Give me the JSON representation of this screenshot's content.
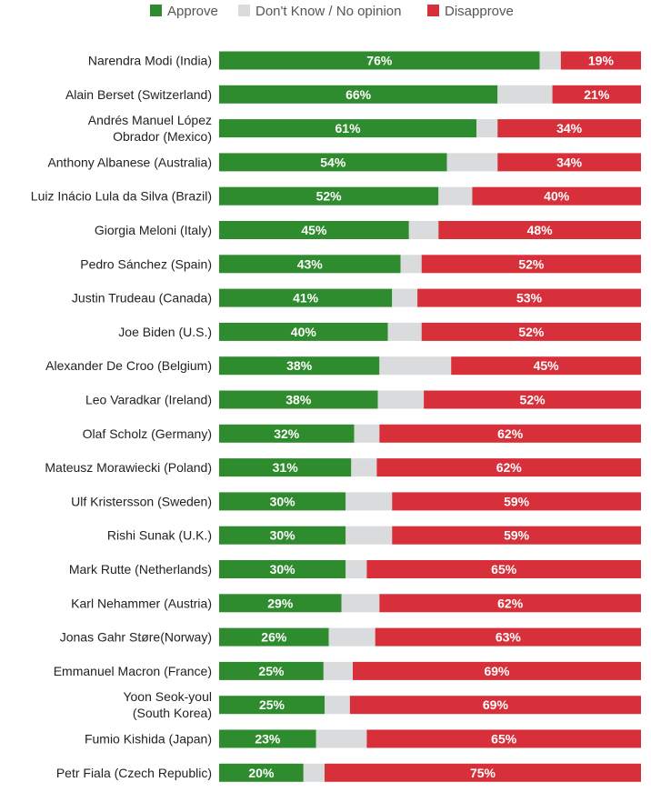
{
  "chart_data": {
    "type": "bar",
    "orientation": "horizontal",
    "stacked": true,
    "legend_position": "top",
    "xlim": [
      0,
      100
    ],
    "categories": [
      [
        "Narendra Modi (India)"
      ],
      [
        "Alain Berset (Switzerland)"
      ],
      [
        "Andrés Manuel López",
        "Obrador (Mexico)"
      ],
      [
        "Anthony Albanese (Australia)"
      ],
      [
        "Luiz Inácio Lula da Silva (Brazil)"
      ],
      [
        "Giorgia Meloni (Italy)"
      ],
      [
        "Pedro Sánchez (Spain)"
      ],
      [
        "Justin Trudeau (Canada)"
      ],
      [
        "Joe Biden (U.S.)"
      ],
      [
        "Alexander De Croo (Belgium)"
      ],
      [
        "Leo Varadkar (Ireland)"
      ],
      [
        "Olaf Scholz (Germany)"
      ],
      [
        "Mateusz Morawiecki (Poland)"
      ],
      [
        "Ulf Kristersson (Sweden)"
      ],
      [
        "Rishi Sunak (U.K.)"
      ],
      [
        "Mark Rutte (Netherlands)"
      ],
      [
        "Karl Nehammer (Austria)"
      ],
      [
        "Jonas Gahr Støre(Norway)"
      ],
      [
        "Emmanuel Macron (France)"
      ],
      [
        "Yoon Seok-youl",
        "(South Korea)"
      ],
      [
        "Fumio Kishida (Japan)"
      ],
      [
        "Petr Fiala (Czech Republic)"
      ]
    ],
    "series": [
      {
        "name": "Approve",
        "color": "#2e8b2e",
        "values": [
          76,
          66,
          61,
          54,
          52,
          45,
          43,
          41,
          40,
          38,
          38,
          32,
          31,
          30,
          30,
          30,
          29,
          26,
          25,
          25,
          23,
          20
        ],
        "labels": [
          "76%",
          "66%",
          "61%",
          "54%",
          "52%",
          "45%",
          "43%",
          "41%",
          "40%",
          "38%",
          "38%",
          "32%",
          "31%",
          "30%",
          "30%",
          "30%",
          "29%",
          "26%",
          "25%",
          "25%",
          "23%",
          "20%"
        ]
      },
      {
        "name": "Don't Know / No opinion",
        "color": "#d9dbdc",
        "values": [
          5,
          13,
          5,
          12,
          8,
          7,
          5,
          6,
          8,
          17,
          11,
          6,
          6,
          11,
          11,
          5,
          9,
          11,
          7,
          6,
          12,
          5
        ],
        "labels": [
          "",
          "",
          "",
          "",
          "",
          "",
          "",
          "",
          "",
          "",
          "",
          "",
          "",
          "",
          "",
          "",
          "",
          "",
          "",
          "",
          "",
          ""
        ]
      },
      {
        "name": "Disapprove",
        "color": "#d7303a",
        "values": [
          19,
          21,
          34,
          34,
          40,
          48,
          52,
          53,
          52,
          45,
          52,
          62,
          62,
          59,
          59,
          65,
          62,
          63,
          69,
          69,
          65,
          75
        ],
        "labels": [
          "19%",
          "21%",
          "34%",
          "34%",
          "40%",
          "48%",
          "52%",
          "53%",
          "52%",
          "45%",
          "52%",
          "62%",
          "62%",
          "59%",
          "59%",
          "65%",
          "62%",
          "63%",
          "69%",
          "69%",
          "65%",
          "75%"
        ]
      }
    ]
  }
}
